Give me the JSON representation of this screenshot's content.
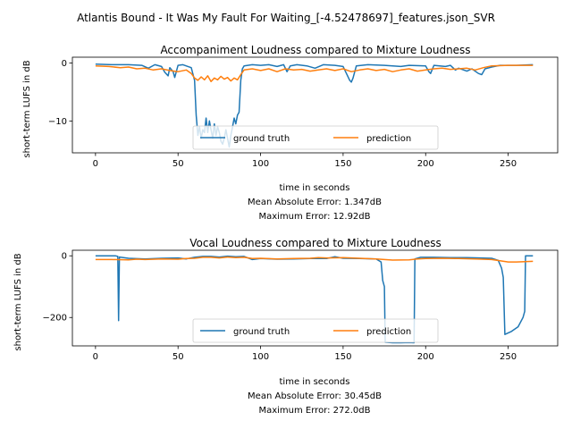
{
  "suptitle": "Atlantis Bound - It Was My Fault For Waiting_[-4.52478697]_features.json_SVR",
  "colors": {
    "ground_truth": "#1f77b4",
    "prediction": "#ff7f0e"
  },
  "chart_data": [
    {
      "type": "line",
      "title": "Accompaniment Loudness compared to Mixture Loudness",
      "xlabel": "time in seconds",
      "ylabel": "short-term LUFS in dB",
      "xlim": [
        -14,
        280
      ],
      "ylim": [
        -15.5,
        1.0
      ],
      "xticks": [
        0,
        50,
        100,
        150,
        200,
        250
      ],
      "yticks": [
        0,
        -10
      ],
      "legend": {
        "placement": "lower-center",
        "entries": [
          "ground truth",
          "prediction"
        ]
      },
      "metrics": [
        "Mean Absolute Error: 1.347dB",
        "Maximum Error: 12.92dB"
      ],
      "series": [
        {
          "name": "ground truth",
          "color": "#1f77b4",
          "points": [
            [
              0,
              -0.2
            ],
            [
              10,
              -0.3
            ],
            [
              20,
              -0.3
            ],
            [
              28,
              -0.4
            ],
            [
              32,
              -0.9
            ],
            [
              36,
              -0.3
            ],
            [
              40,
              -0.6
            ],
            [
              42,
              -1.6
            ],
            [
              44,
              -2.2
            ],
            [
              45,
              -0.8
            ],
            [
              47,
              -1.5
            ],
            [
              48,
              -2.5
            ],
            [
              50,
              -0.4
            ],
            [
              53,
              -0.3
            ],
            [
              56,
              -0.6
            ],
            [
              58,
              -0.8
            ],
            [
              60,
              -3.0
            ],
            [
              61,
              -9.0
            ],
            [
              62,
              -12.5
            ],
            [
              63,
              -11.0
            ],
            [
              64,
              -13.0
            ],
            [
              65,
              -11.5
            ],
            [
              66,
              -12.0
            ],
            [
              67,
              -9.5
            ],
            [
              68,
              -12.0
            ],
            [
              69,
              -10.0
            ],
            [
              70,
              -11.5
            ],
            [
              71,
              -13.0
            ],
            [
              72,
              -10.5
            ],
            [
              73,
              -12.5
            ],
            [
              74,
              -11.0
            ],
            [
              75,
              -12.0
            ],
            [
              76,
              -13.5
            ],
            [
              77,
              -14.0
            ],
            [
              78,
              -13.0
            ],
            [
              79,
              -11.5
            ],
            [
              80,
              -13.0
            ],
            [
              81,
              -14.5
            ],
            [
              82,
              -12.5
            ],
            [
              83,
              -11.0
            ],
            [
              84,
              -9.5
            ],
            [
              85,
              -10.5
            ],
            [
              86,
              -9.0
            ],
            [
              87,
              -8.5
            ],
            [
              88,
              -3.0
            ],
            [
              89,
              -1.0
            ],
            [
              90,
              -0.5
            ],
            [
              95,
              -0.3
            ],
            [
              100,
              -0.4
            ],
            [
              105,
              -0.3
            ],
            [
              110,
              -0.6
            ],
            [
              114,
              -0.3
            ],
            [
              116,
              -1.5
            ],
            [
              118,
              -0.5
            ],
            [
              122,
              -0.3
            ],
            [
              128,
              -0.5
            ],
            [
              133,
              -0.9
            ],
            [
              138,
              -0.3
            ],
            [
              145,
              -0.4
            ],
            [
              150,
              -0.6
            ],
            [
              152,
              -1.8
            ],
            [
              154,
              -3.0
            ],
            [
              155,
              -3.3
            ],
            [
              156,
              -2.6
            ],
            [
              158,
              -0.5
            ],
            [
              165,
              -0.3
            ],
            [
              175,
              -0.4
            ],
            [
              185,
              -0.6
            ],
            [
              190,
              -0.4
            ],
            [
              200,
              -0.5
            ],
            [
              202,
              -1.5
            ],
            [
              203,
              -1.8
            ],
            [
              205,
              -0.4
            ],
            [
              212,
              -0.6
            ],
            [
              215,
              -0.4
            ],
            [
              218,
              -1.2
            ],
            [
              220,
              -0.9
            ],
            [
              225,
              -1.4
            ],
            [
              228,
              -1.0
            ],
            [
              232,
              -1.8
            ],
            [
              234,
              -2.0
            ],
            [
              236,
              -1.0
            ],
            [
              240,
              -0.7
            ],
            [
              245,
              -0.4
            ],
            [
              255,
              -0.4
            ],
            [
              265,
              -0.3
            ]
          ]
        },
        {
          "name": "prediction",
          "color": "#ff7f0e",
          "points": [
            [
              0,
              -0.5
            ],
            [
              8,
              -0.6
            ],
            [
              15,
              -0.8
            ],
            [
              20,
              -0.7
            ],
            [
              25,
              -1.0
            ],
            [
              30,
              -0.9
            ],
            [
              35,
              -1.2
            ],
            [
              40,
              -1.0
            ],
            [
              45,
              -1.3
            ],
            [
              50,
              -1.5
            ],
            [
              55,
              -1.2
            ],
            [
              58,
              -1.8
            ],
            [
              60,
              -2.6
            ],
            [
              62,
              -3.0
            ],
            [
              64,
              -2.4
            ],
            [
              66,
              -2.9
            ],
            [
              68,
              -2.2
            ],
            [
              70,
              -3.2
            ],
            [
              72,
              -2.6
            ],
            [
              74,
              -2.9
            ],
            [
              76,
              -2.3
            ],
            [
              78,
              -2.8
            ],
            [
              80,
              -2.5
            ],
            [
              82,
              -3.1
            ],
            [
              84,
              -2.6
            ],
            [
              86,
              -2.9
            ],
            [
              88,
              -2.0
            ],
            [
              90,
              -1.2
            ],
            [
              95,
              -1.0
            ],
            [
              100,
              -1.3
            ],
            [
              105,
              -1.0
            ],
            [
              110,
              -1.5
            ],
            [
              115,
              -1.0
            ],
            [
              120,
              -1.2
            ],
            [
              125,
              -1.1
            ],
            [
              130,
              -1.4
            ],
            [
              135,
              -1.2
            ],
            [
              140,
              -1.0
            ],
            [
              145,
              -1.3
            ],
            [
              150,
              -1.0
            ],
            [
              155,
              -1.5
            ],
            [
              160,
              -1.2
            ],
            [
              165,
              -1.0
            ],
            [
              170,
              -1.3
            ],
            [
              175,
              -1.1
            ],
            [
              180,
              -1.5
            ],
            [
              185,
              -1.2
            ],
            [
              190,
              -1.0
            ],
            [
              195,
              -1.4
            ],
            [
              200,
              -1.2
            ],
            [
              205,
              -1.0
            ],
            [
              210,
              -0.9
            ],
            [
              215,
              -1.1
            ],
            [
              220,
              -1.0
            ],
            [
              225,
              -0.9
            ],
            [
              230,
              -1.2
            ],
            [
              235,
              -0.8
            ],
            [
              240,
              -0.5
            ],
            [
              250,
              -0.4
            ],
            [
              265,
              -0.4
            ]
          ]
        }
      ]
    },
    {
      "type": "line",
      "title": "Vocal Loudness compared to Mixture Loudness",
      "xlabel": "time in seconds",
      "ylabel": "short-term LUFS in dB",
      "xlim": [
        -14,
        280
      ],
      "ylim": [
        -292,
        18
      ],
      "xticks": [
        0,
        50,
        100,
        150,
        200,
        250
      ],
      "yticks": [
        0,
        -200
      ],
      "legend": {
        "placement": "lower-center",
        "entries": [
          "ground truth",
          "prediction"
        ]
      },
      "metrics": [
        "Mean Absolute Error: 30.45dB",
        "Maximum Error: 272.0dB"
      ],
      "series": [
        {
          "name": "ground truth",
          "color": "#1f77b4",
          "points": [
            [
              0,
              0
            ],
            [
              12,
              0
            ],
            [
              13.5,
              -2
            ],
            [
              14,
              -210
            ],
            [
              14.5,
              -4
            ],
            [
              20,
              -8
            ],
            [
              30,
              -10
            ],
            [
              40,
              -8
            ],
            [
              50,
              -7
            ],
            [
              55,
              -10
            ],
            [
              60,
              -5
            ],
            [
              65,
              -2
            ],
            [
              70,
              -2
            ],
            [
              75,
              -4
            ],
            [
              80,
              -1
            ],
            [
              85,
              -3
            ],
            [
              90,
              -2
            ],
            [
              95,
              -12
            ],
            [
              100,
              -9
            ],
            [
              110,
              -11
            ],
            [
              120,
              -10
            ],
            [
              130,
              -9
            ],
            [
              140,
              -9
            ],
            [
              145,
              -3
            ],
            [
              150,
              -8
            ],
            [
              160,
              -9
            ],
            [
              170,
              -10
            ],
            [
              173,
              -20
            ],
            [
              174,
              -80
            ],
            [
              175,
              -100
            ],
            [
              175.5,
              -280
            ],
            [
              180,
              -282
            ],
            [
              185,
              -282
            ],
            [
              190,
              -281
            ],
            [
              193,
              -282
            ],
            [
              193.5,
              -10
            ],
            [
              197,
              -5
            ],
            [
              205,
              -5
            ],
            [
              215,
              -6
            ],
            [
              225,
              -6
            ],
            [
              240,
              -8
            ],
            [
              244,
              -15
            ],
            [
              246,
              -40
            ],
            [
              247,
              -70
            ],
            [
              248,
              -255
            ],
            [
              252,
              -245
            ],
            [
              256,
              -230
            ],
            [
              259,
              -200
            ],
            [
              260,
              -180
            ],
            [
              260.5,
              0
            ],
            [
              265,
              0
            ]
          ]
        },
        {
          "name": "prediction",
          "color": "#ff7f0e",
          "points": [
            [
              0,
              -12
            ],
            [
              10,
              -12
            ],
            [
              20,
              -13
            ],
            [
              25,
              -11
            ],
            [
              30,
              -12
            ],
            [
              40,
              -10
            ],
            [
              50,
              -11
            ],
            [
              55,
              -9
            ],
            [
              60,
              -8
            ],
            [
              65,
              -5
            ],
            [
              70,
              -5
            ],
            [
              75,
              -7
            ],
            [
              80,
              -4
            ],
            [
              85,
              -6
            ],
            [
              90,
              -5
            ],
            [
              95,
              -9
            ],
            [
              100,
              -8
            ],
            [
              110,
              -10
            ],
            [
              120,
              -9
            ],
            [
              130,
              -8
            ],
            [
              135,
              -6
            ],
            [
              140,
              -7
            ],
            [
              150,
              -6
            ],
            [
              160,
              -8
            ],
            [
              170,
              -10
            ],
            [
              175,
              -12
            ],
            [
              180,
              -14
            ],
            [
              190,
              -13
            ],
            [
              195,
              -10
            ],
            [
              200,
              -9
            ],
            [
              210,
              -8
            ],
            [
              220,
              -9
            ],
            [
              230,
              -10
            ],
            [
              240,
              -12
            ],
            [
              245,
              -16
            ],
            [
              250,
              -20
            ],
            [
              255,
              -20
            ],
            [
              260,
              -19
            ],
            [
              265,
              -18
            ]
          ]
        }
      ]
    }
  ]
}
